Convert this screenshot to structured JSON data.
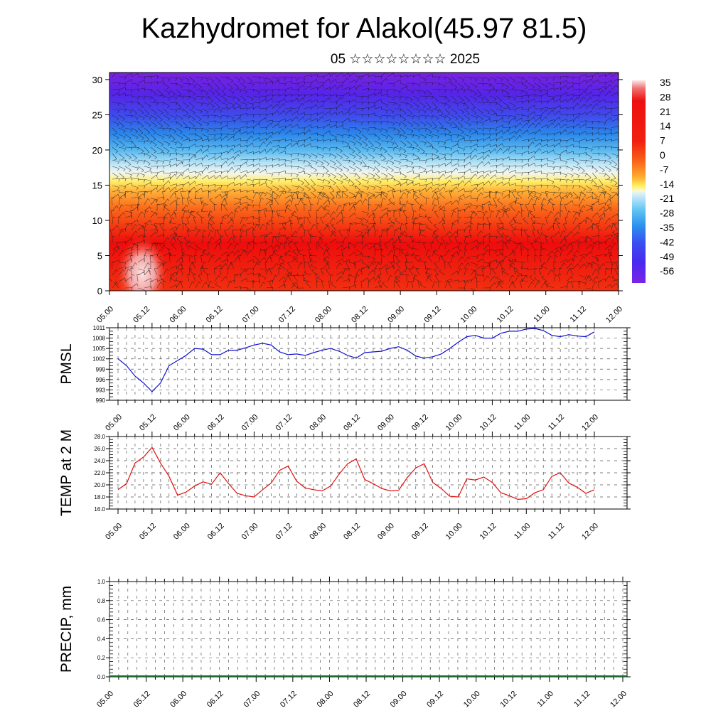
{
  "title": "Kazhydromet for Alakol(45.97 81.5)",
  "subtitle": "05 ☆☆☆☆☆☆☆☆ 2025",
  "chart_data": [
    {
      "type": "heatmap",
      "name": "vertical cross-section",
      "x_ticks": [
        "05.00",
        "05.12",
        "06.00",
        "06.12",
        "07.00",
        "07.12",
        "08.00",
        "08.12",
        "09.00",
        "09.12",
        "10.00",
        "10.12",
        "11.00",
        "11.12",
        "12.00"
      ],
      "y_ticks": [
        0,
        5,
        10,
        15,
        20,
        25,
        30
      ],
      "ylim": [
        0,
        31
      ],
      "colorbar_labels": [
        "35",
        "28",
        "21",
        "14",
        "7",
        "0",
        "-7",
        "-14",
        "-21",
        "-28",
        "-35",
        "-42",
        "-49",
        "-56"
      ],
      "colorbar_range": [
        -60,
        38
      ],
      "overlay": "wind barbs"
    },
    {
      "type": "line",
      "ylabel": "PMSL",
      "x_ticks": [
        "05.00",
        "05.12",
        "06.00",
        "06.12",
        "07.00",
        "07.12",
        "08.00",
        "08.12",
        "09.00",
        "09.12",
        "10.00",
        "10.12",
        "11.00",
        "11.12",
        "12.00"
      ],
      "y_ticks": [
        990,
        993,
        996,
        999,
        1002,
        1005,
        1008,
        1011
      ],
      "ylim": [
        990,
        1011
      ],
      "color": "#1010d0",
      "values": [
        1002,
        1000,
        997,
        995,
        992.5,
        995,
        1000,
        1001.5,
        1003,
        1005,
        1004.8,
        1003.2,
        1003.2,
        1004.5,
        1004.5,
        1005.2,
        1006,
        1006.5,
        1006,
        1004,
        1003.2,
        1003.4,
        1003,
        1003.8,
        1004.5,
        1005,
        1004.2,
        1003,
        1002.2,
        1003.8,
        1004,
        1004.2,
        1005,
        1005.5,
        1004.5,
        1002.8,
        1002.2,
        1002.6,
        1003.4,
        1005,
        1006.8,
        1008.4,
        1008.8,
        1008,
        1008,
        1009.4,
        1010,
        1010,
        1010.6,
        1010.8,
        1010.2,
        1008.8,
        1008.4,
        1009,
        1008.6,
        1008.4,
        1009.8
      ]
    },
    {
      "type": "line",
      "ylabel": "TEMP at 2 M",
      "x_ticks": [
        "05.00",
        "05.12",
        "06.00",
        "06.12",
        "07.00",
        "07.12",
        "08.00",
        "08.12",
        "09.00",
        "09.12",
        "10.00",
        "10.12",
        "11.00",
        "11.12",
        "12.00"
      ],
      "y_ticks": [
        "16.0",
        "18.0",
        "20.0",
        "22.0",
        "24.0",
        "26.0",
        "28.0"
      ],
      "ylim": [
        16,
        28
      ],
      "color": "#e01010",
      "values": [
        19.2,
        20.2,
        23.6,
        24.6,
        26.2,
        23.6,
        21.4,
        18.3,
        18.8,
        19.8,
        20.5,
        20.1,
        22,
        20.2,
        18.6,
        18.2,
        18,
        19.2,
        20.3,
        22.4,
        23.1,
        20.6,
        19.5,
        19.2,
        19,
        19.8,
        21.8,
        23.5,
        24.3,
        20.9,
        20.2,
        19.4,
        19,
        19.1,
        21.2,
        22.8,
        23.5,
        20.4,
        19.4,
        18.1,
        18,
        21,
        20.8,
        21.3,
        20.4,
        18.7,
        18.2,
        17.6,
        17.7,
        18.7,
        19.2,
        21.4,
        22,
        20.3,
        19.6,
        18.6,
        19.2
      ]
    },
    {
      "type": "bar",
      "ylabel": "PRECIP, mm",
      "x_ticks": [
        "05.00",
        "05.12",
        "06.00",
        "06.12",
        "07.00",
        "07.12",
        "08.00",
        "08.12",
        "09.00",
        "09.12",
        "10.00",
        "10.12",
        "11.00",
        "11.12",
        "12.00"
      ],
      "y_ticks": [
        "0.0",
        "0.2",
        "0.4",
        "0.6",
        "0.8",
        "1.0"
      ],
      "ylim": [
        0,
        1
      ],
      "values": [
        0,
        0,
        0,
        0,
        0,
        0,
        0,
        0,
        0,
        0,
        0,
        0,
        0,
        0,
        0,
        0,
        0,
        0,
        0,
        0,
        0,
        0,
        0,
        0,
        0,
        0,
        0,
        0,
        0
      ]
    }
  ]
}
